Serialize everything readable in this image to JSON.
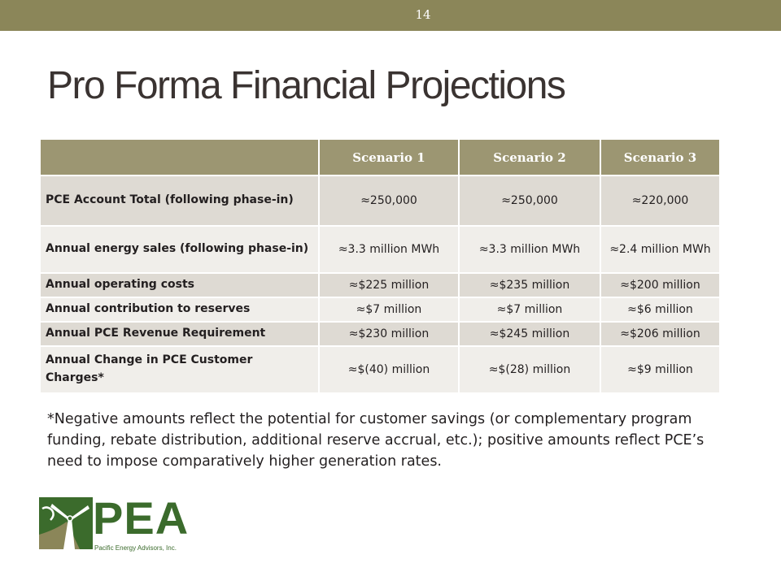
{
  "slide": {
    "page_number": "14",
    "title": "Pro Forma Financial Projections"
  },
  "table": {
    "headers": [
      "",
      "Scenario 1",
      "Scenario 2",
      "Scenario 3"
    ],
    "rows": [
      {
        "label": "PCE Account Total (following phase-in)",
        "values": [
          "≈250,000",
          "≈250,000",
          "≈220,000"
        ]
      },
      {
        "label": "Annual energy sales (following phase-in)",
        "values": [
          "≈3.3 million MWh",
          "≈3.3 million MWh",
          "≈2.4 million MWh"
        ]
      },
      {
        "label": "Annual operating costs",
        "values": [
          "≈$225 million",
          "≈$235 million",
          "≈$200 million"
        ]
      },
      {
        "label": "Annual contribution to reserves",
        "values": [
          "≈$7 million",
          "≈$7 million",
          "≈$6 million"
        ]
      },
      {
        "label": "Annual PCE Revenue Requirement",
        "values": [
          "≈$230 million",
          "≈$245 million",
          "≈$206 million"
        ]
      },
      {
        "label": "Annual Change in PCE Customer Charges*",
        "values": [
          "≈$(40) million",
          "≈$(28) million",
          "≈$9 million"
        ]
      }
    ]
  },
  "footnote": "*Negative amounts reflect the potential for customer savings (or complementary program funding, rebate distribution, additional reserve accrual, etc.); positive amounts reflect PCE’s need to impose comparatively higher generation rates.",
  "logo": {
    "text": "PEA",
    "subtitle": "Pacific Energy Advisors, Inc.",
    "icon": "windmill-icon",
    "colors": {
      "green": "#3b6b2c",
      "olive": "#8b8659"
    }
  }
}
